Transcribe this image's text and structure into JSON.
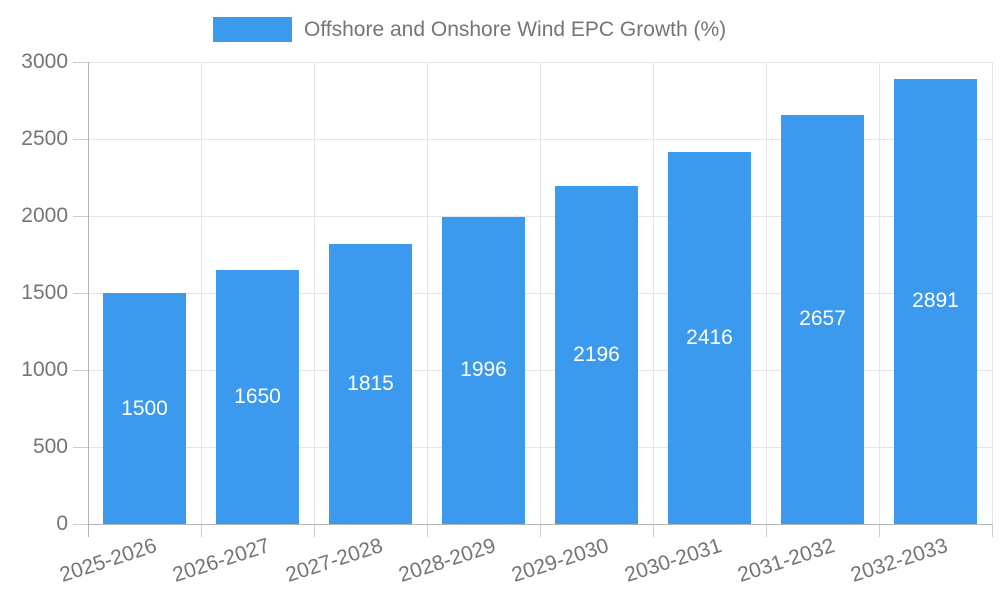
{
  "chart_data": {
    "type": "bar",
    "title": "Offshore and Onshore Wind EPC Growth (%)",
    "categories": [
      "2025-2026",
      "2026-2027",
      "2027-2028",
      "2028-2029",
      "2029-2030",
      "2030-2031",
      "2031-2032",
      "2032-2033"
    ],
    "values": [
      1500,
      1650,
      1815,
      1996,
      2196,
      2416,
      2657,
      2891
    ],
    "series": [
      {
        "name": "Offshore and Onshore Wind EPC Growth (%)",
        "values": [
          1500,
          1650,
          1815,
          1996,
          2196,
          2416,
          2657,
          2891
        ]
      }
    ],
    "xlabel": "",
    "ylabel": "",
    "ylim": [
      0,
      3000
    ],
    "yticks": [
      0,
      500,
      1000,
      1500,
      2000,
      2500,
      3000
    ],
    "legend_position": "top-center",
    "grid": true,
    "bar_value_labels_inside": true,
    "colors": {
      "bar": "#3b99ee",
      "bar_label": "#ffffff",
      "axis_text": "#757575",
      "gridline": "#e6e6e6",
      "axis_line": "#b3b3b3",
      "tick": "#cccccc",
      "background": "#ffffff"
    }
  }
}
